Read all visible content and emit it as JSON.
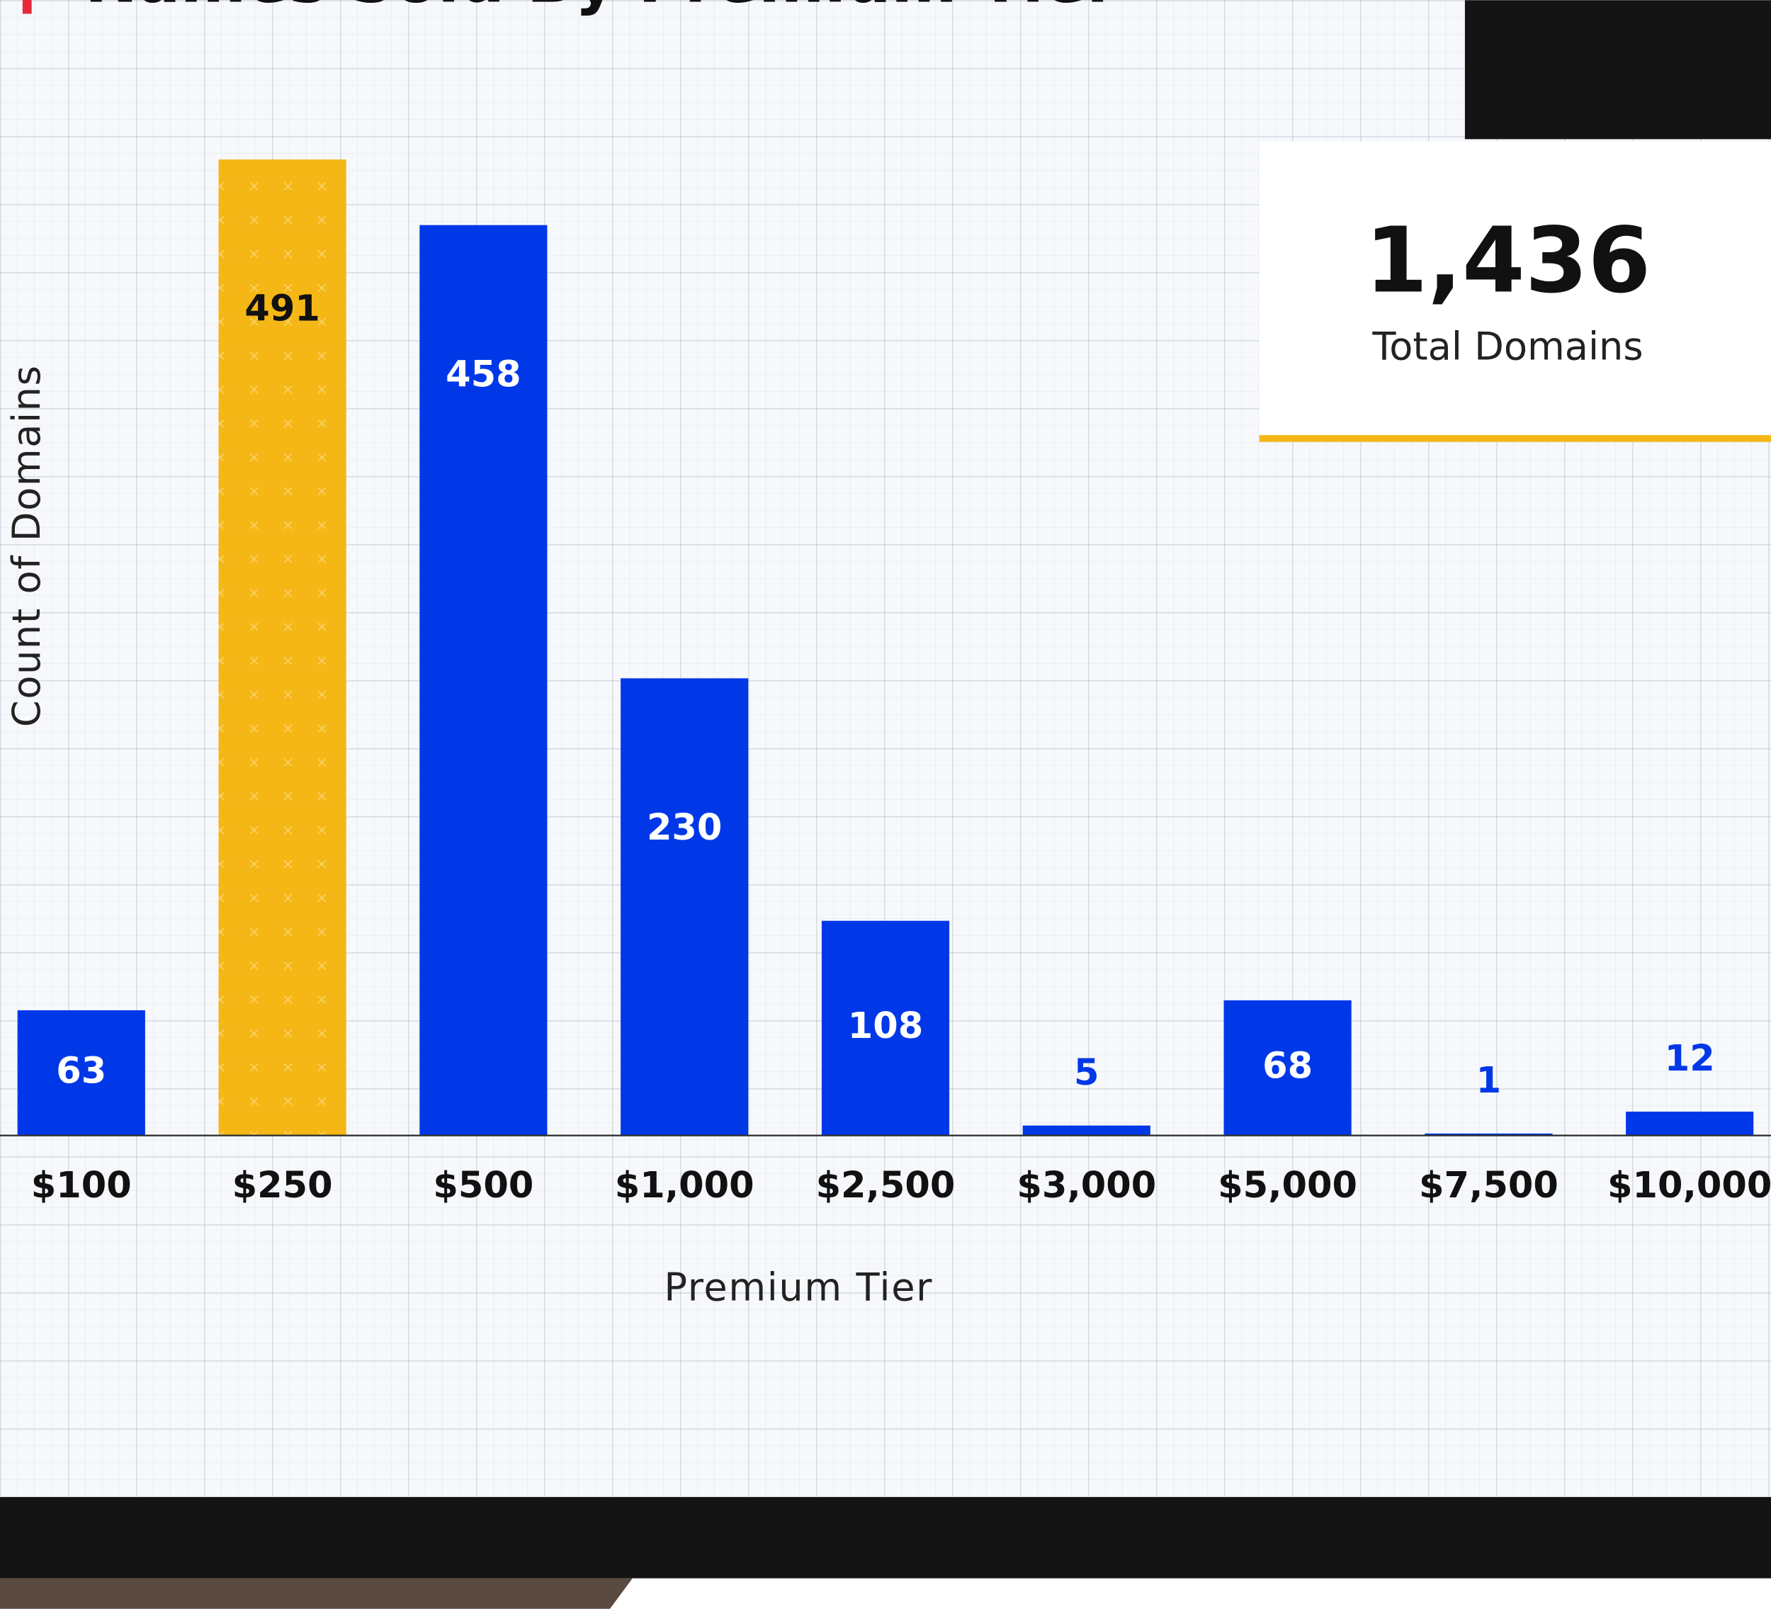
{
  "chart_data": {
    "type": "bar",
    "title": "Names Sold By Premium Tier",
    "x_label": "Premium Tier",
    "y_label": "Count of Domains",
    "categories": [
      "$100",
      "$250",
      "$500",
      "$1,000",
      "$2,500",
      "$3,000",
      "$5,000",
      "$7,500",
      "$10,000"
    ],
    "values": [
      63,
      491,
      458,
      230,
      108,
      5,
      68,
      1,
      12
    ],
    "colors": [
      "#0038e8",
      "#f5b716",
      "#0038e8",
      "#0038e8",
      "#0038e8",
      "#0038e8",
      "#0038e8",
      "#0038e8",
      "#0038e8"
    ],
    "ylim": [
      0,
      491
    ],
    "stat": {
      "value": "1,436",
      "label": "Total Domains"
    }
  }
}
